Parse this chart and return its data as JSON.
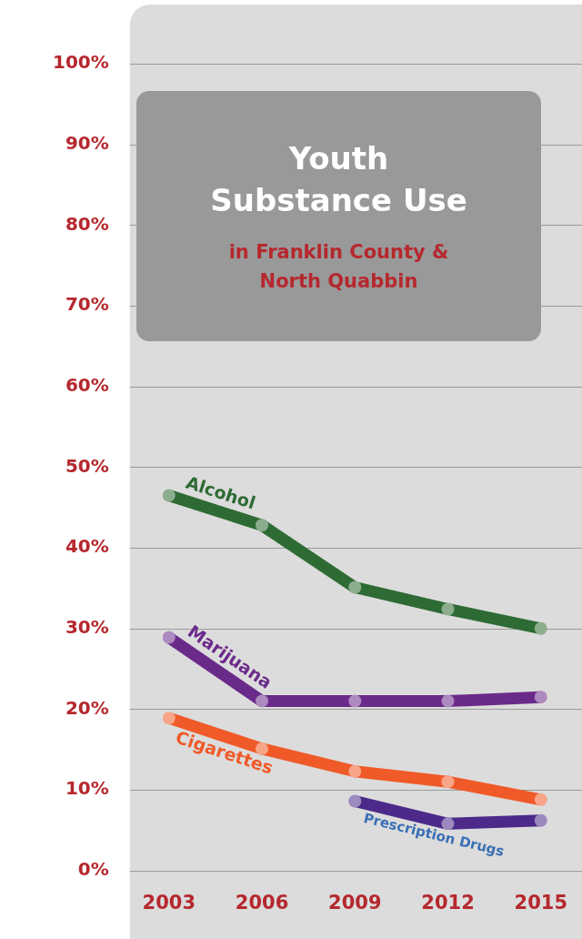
{
  "chart_data": {
    "type": "line",
    "title": "Youth Substance Use",
    "subtitle": "in Franklin County & North Quabbin",
    "categories": [
      "2003",
      "2006",
      "2009",
      "2012",
      "2015"
    ],
    "series": [
      {
        "name": "Alcohol",
        "color": "#2e6b34",
        "values": [
          46.5,
          42.8,
          35.1,
          32.4,
          30.0
        ]
      },
      {
        "name": "Marijuana",
        "color": "#6a2a8a",
        "values": [
          28.9,
          21.0,
          21.0,
          21.0,
          21.5
        ]
      },
      {
        "name": "Cigarettes",
        "color": "#f05a28",
        "values": [
          18.9,
          15.1,
          12.3,
          11.0,
          8.8
        ]
      },
      {
        "name": "Prescription Drugs",
        "color": "#4b2a8a",
        "values": [
          null,
          null,
          8.6,
          5.8,
          6.2
        ]
      }
    ],
    "ylim": [
      0,
      100
    ],
    "yticks": [
      {
        "value": 0,
        "label": "0%"
      },
      {
        "value": 10,
        "label": "10%"
      },
      {
        "value": 20,
        "label": "20%"
      },
      {
        "value": 30,
        "label": "30%"
      },
      {
        "value": 40,
        "label": "40%"
      },
      {
        "value": 50,
        "label": "50%"
      },
      {
        "value": 60,
        "label": "60%"
      },
      {
        "value": 70,
        "label": "70%"
      },
      {
        "value": 80,
        "label": "80%"
      },
      {
        "value": 90,
        "label": "90%"
      },
      {
        "value": 100,
        "label": "100%"
      }
    ],
    "grid": "y",
    "legend": false,
    "marker": "circle",
    "line_style": "solid"
  }
}
